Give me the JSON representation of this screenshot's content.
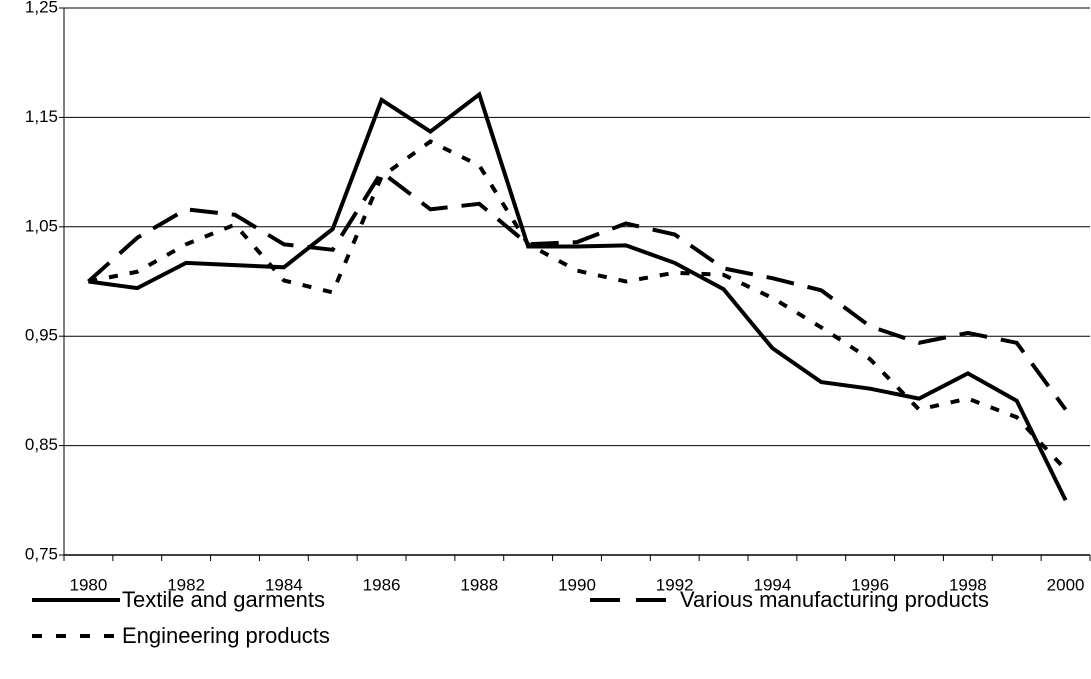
{
  "chart_data": {
    "type": "line",
    "categories": [
      "1980",
      null,
      "1982",
      null,
      "1984",
      null,
      "1986",
      null,
      "1988",
      null,
      "1990",
      null,
      "1992",
      null,
      "1994",
      null,
      "1996",
      null,
      "1998",
      null,
      "2000"
    ],
    "ylim": [
      0.75,
      1.25
    ],
    "yticks": [
      {
        "value": 0.75,
        "label": "0,75"
      },
      {
        "value": 0.85,
        "label": "0,85"
      },
      {
        "value": 0.95,
        "label": "0,95"
      },
      {
        "value": 1.05,
        "label": "1,05"
      },
      {
        "value": 1.15,
        "label": "1,15"
      },
      {
        "value": 1.25,
        "label": "1,25"
      }
    ],
    "grid": true,
    "legend": "bottom",
    "series": [
      {
        "name": "Textile and garments",
        "color": "#000000",
        "style": "solid",
        "values": [
          1.0,
          0.994,
          1.017,
          1.015,
          1.013,
          1.048,
          1.166,
          1.137,
          1.171,
          1.032,
          1.032,
          1.033,
          1.017,
          0.993,
          0.939,
          0.908,
          0.902,
          0.893,
          0.916,
          0.891,
          0.8
        ]
      },
      {
        "name": "Various manufacturing products",
        "color": "#000000",
        "style": "long-dash",
        "values": [
          1.0,
          1.04,
          1.066,
          1.061,
          1.034,
          1.029,
          1.1,
          1.066,
          1.071,
          1.034,
          1.036,
          1.053,
          1.043,
          1.012,
          1.003,
          0.992,
          0.959,
          0.944,
          0.953,
          0.944,
          0.883
        ]
      },
      {
        "name": "Engineering products",
        "color": "#000000",
        "style": "short-dash",
        "values": [
          1.0,
          1.009,
          1.034,
          1.052,
          1.001,
          0.99,
          1.096,
          1.128,
          1.106,
          1.034,
          1.01,
          1.0,
          1.008,
          1.006,
          0.985,
          0.958,
          0.929,
          0.883,
          0.893,
          0.876,
          0.828
        ]
      }
    ]
  }
}
